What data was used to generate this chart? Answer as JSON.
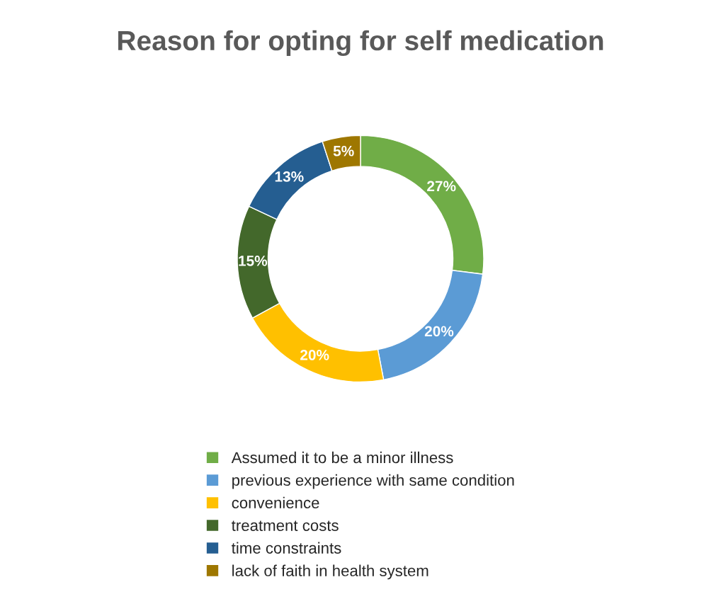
{
  "chart_data": {
    "type": "donut",
    "title": "Reason for opting for self medication",
    "categories": [
      "Assumed it to be a minor illness",
      "previous experience with same condition",
      "convenience",
      "treatment costs",
      "time constraints",
      "lack of faith in health system"
    ],
    "values": [
      27,
      20,
      20,
      15,
      13,
      5
    ],
    "colors": [
      "#70ad47",
      "#5b9bd5",
      "#ffc000",
      "#43682b",
      "#255e91",
      "#9e7700"
    ],
    "value_labels": [
      "27%",
      "20%",
      "20%",
      "15%",
      "13%",
      "5%"
    ],
    "legend": "bottom"
  }
}
